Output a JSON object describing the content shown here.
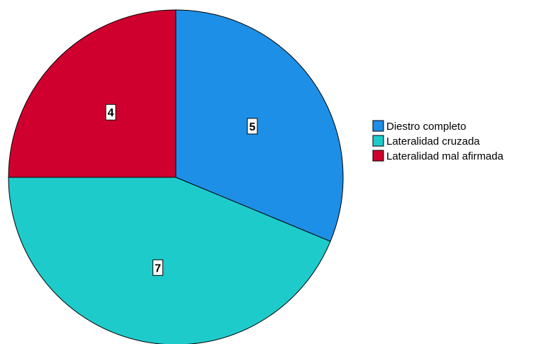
{
  "chart_data": {
    "type": "pie",
    "title": "",
    "categories": [
      "Diestro completo",
      "Lateralidad cruzada",
      "Lateralidad mal afirmada"
    ],
    "values": [
      5,
      7,
      4
    ],
    "colors": [
      "#1e8fe6",
      "#1ecbcb",
      "#d0002e"
    ],
    "data_labels": [
      "5",
      "7",
      "4"
    ],
    "start_angle_deg": 0,
    "direction": "clockwise",
    "legend": {
      "position": "right",
      "entries": [
        "Diestro completo",
        "Lateralidad cruzada",
        "Lateralidad mal afirmada"
      ]
    }
  }
}
